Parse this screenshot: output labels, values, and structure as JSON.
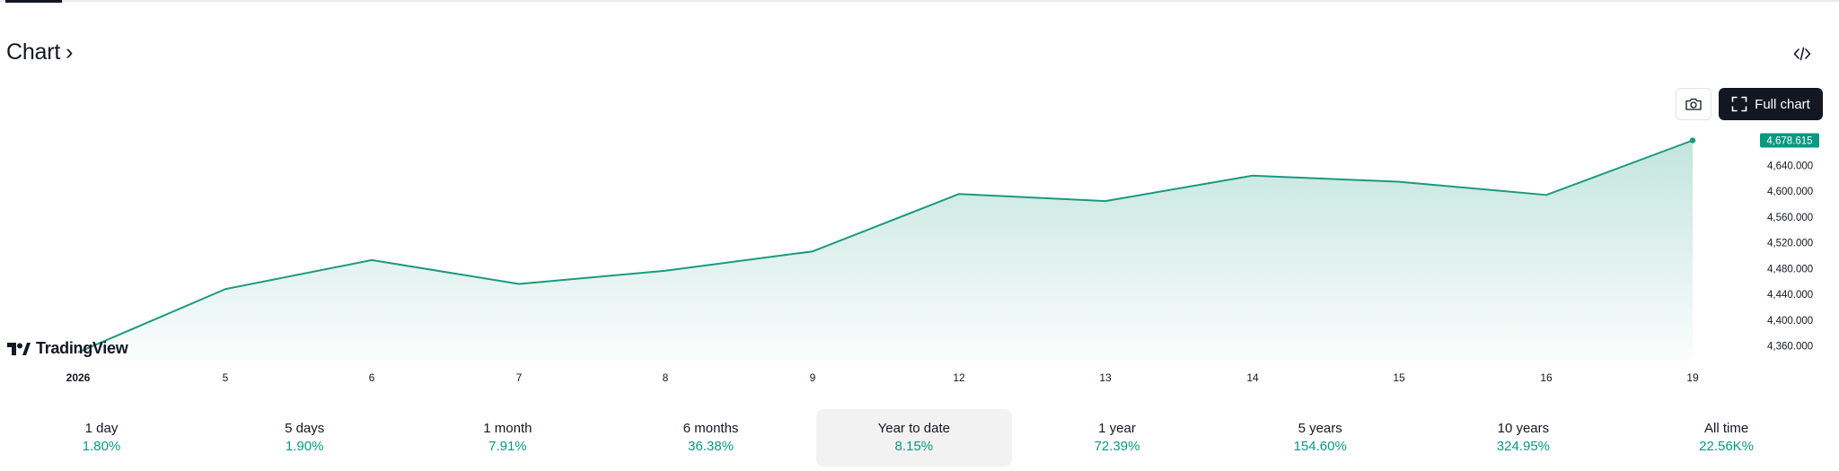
{
  "header": {
    "title": "Chart",
    "chevron": "›"
  },
  "toolbar": {
    "embed_icon": "code-embed-icon",
    "camera_icon": "camera-icon",
    "full_chart_label": "Full chart",
    "full_chart_icon": "fullscreen-icon"
  },
  "branding": {
    "logo_text": "TradingView"
  },
  "colors": {
    "line": "#1a9a7f",
    "accent": "#089981",
    "area_top": "#c7e7dd",
    "dark": "#131722"
  },
  "chart_data": {
    "type": "area",
    "x": [
      "2026",
      "5",
      "6",
      "7",
      "8",
      "9",
      "12",
      "13",
      "14",
      "15",
      "16",
      "19"
    ],
    "values": [
      4350.0,
      4448.0,
      4493.0,
      4456.0,
      4476.5,
      4506.5,
      4595.5,
      4584.5,
      4624.0,
      4614.5,
      4594.0,
      4678.615
    ],
    "y_ticks": [
      "4,360.000",
      "4,400.000",
      "4,440.000",
      "4,480.000",
      "4,520.000",
      "4,560.000",
      "4,600.000",
      "4,640.000"
    ],
    "y_tick_values": [
      4360,
      4400,
      4440,
      4480,
      4520,
      4560,
      4600,
      4640
    ],
    "last_price_label": "4,678.615",
    "grid": false
  },
  "periods": [
    {
      "label": "1 day",
      "value": "1.80%"
    },
    {
      "label": "5 days",
      "value": "1.90%"
    },
    {
      "label": "1 month",
      "value": "7.91%"
    },
    {
      "label": "6 months",
      "value": "36.38%"
    },
    {
      "label": "Year to date",
      "value": "8.15%",
      "active": true
    },
    {
      "label": "1 year",
      "value": "72.39%"
    },
    {
      "label": "5 years",
      "value": "154.60%"
    },
    {
      "label": "10 years",
      "value": "324.95%"
    },
    {
      "label": "All time",
      "value": "22.56K%"
    }
  ]
}
